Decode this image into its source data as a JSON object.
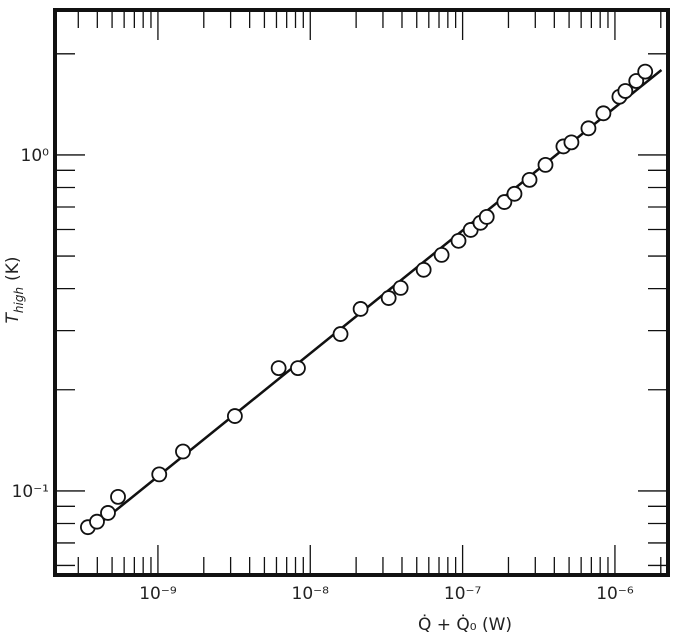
{
  "chart_data": {
    "type": "scatter",
    "xlabel": "Q̇ + Q̇₀ (W)",
    "ylabel": {
      "main": "T",
      "sub": "high",
      "unit": "(K)"
    },
    "log_x": true,
    "log_y": true,
    "xlim": [
      2.11e-10,
      2.23e-06
    ],
    "ylim": [
      0.0562,
      2.7
    ],
    "xticks": [
      {
        "value": 1e-09,
        "label": "10⁻⁹"
      },
      {
        "value": 1e-08,
        "label": "10⁻⁸"
      },
      {
        "value": 1e-07,
        "label": "10⁻⁷"
      },
      {
        "value": 1e-06,
        "label": "10⁻⁶"
      }
    ],
    "yticks": [
      {
        "value": 0.1,
        "label": "10⁻¹"
      },
      {
        "value": 1,
        "label": "10⁰"
      }
    ],
    "series": [
      {
        "mode": "markers",
        "color": "#111",
        "x": [
          3.47e-10,
          3.98e-10,
          4.7e-10,
          5.47e-10,
          1.02e-09,
          1.46e-09,
          3.2e-09,
          6.2e-09,
          8.3e-09,
          1.58e-08,
          2.14e-08,
          3.27e-08,
          3.92e-08,
          5.55e-08,
          7.28e-08,
          9.4e-08,
          1.13e-07,
          1.31e-07,
          1.44e-07,
          1.88e-07,
          2.19e-07,
          2.75e-07,
          3.5e-07,
          4.59e-07,
          5.18e-07,
          6.7e-07,
          8.4e-07,
          1.07e-06,
          1.17e-06,
          1.38e-06,
          1.58e-06
        ],
        "values": [
          0.078,
          0.081,
          0.086,
          0.096,
          0.112,
          0.131,
          0.167,
          0.232,
          0.232,
          0.293,
          0.348,
          0.375,
          0.402,
          0.455,
          0.504,
          0.555,
          0.598,
          0.628,
          0.654,
          0.724,
          0.766,
          0.843,
          0.934,
          1.06,
          1.09,
          1.2,
          1.33,
          1.49,
          1.55,
          1.66,
          1.77
        ]
      },
      {
        "mode": "line",
        "color": "#111",
        "x": [
          3.47e-10,
          2.02e-06
        ],
        "values": [
          0.075,
          1.79
        ]
      }
    ]
  }
}
